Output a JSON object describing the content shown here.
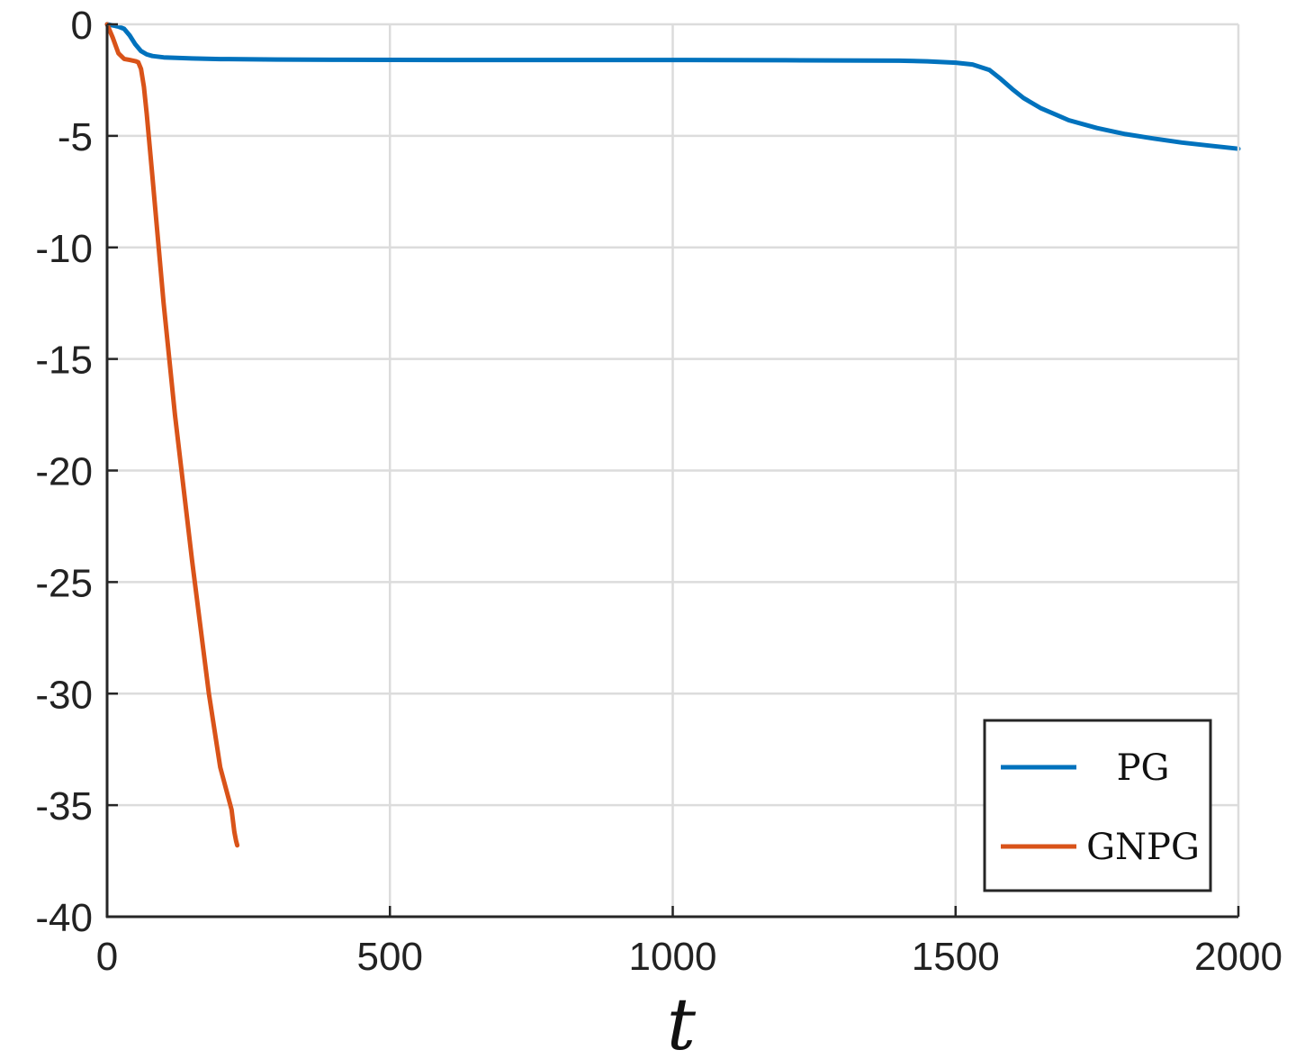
{
  "chart_data": {
    "type": "line",
    "title": "",
    "xlabel": "t",
    "ylabel": "",
    "xlim": [
      0,
      2000
    ],
    "ylim": [
      -40,
      0
    ],
    "xticks": [
      0,
      500,
      1000,
      1500,
      2000
    ],
    "yticks": [
      0,
      -5,
      -10,
      -15,
      -20,
      -25,
      -30,
      -35,
      -40
    ],
    "grid": true,
    "legend_position": "bottom-right",
    "series": [
      {
        "name": "PG",
        "color": "#0072BD",
        "x": [
          0,
          10,
          20,
          30,
          40,
          50,
          60,
          70,
          80,
          100,
          150,
          200,
          300,
          400,
          600,
          800,
          1000,
          1200,
          1400,
          1450,
          1500,
          1530,
          1560,
          1580,
          1600,
          1620,
          1650,
          1700,
          1750,
          1800,
          1850,
          1900,
          1950,
          2000
        ],
        "y": [
          0,
          -0.05,
          -0.1,
          -0.2,
          -0.5,
          -0.9,
          -1.2,
          -1.35,
          -1.42,
          -1.48,
          -1.53,
          -1.56,
          -1.58,
          -1.59,
          -1.6,
          -1.6,
          -1.6,
          -1.61,
          -1.63,
          -1.66,
          -1.72,
          -1.8,
          -2.05,
          -2.45,
          -2.9,
          -3.3,
          -3.75,
          -4.3,
          -4.65,
          -4.92,
          -5.12,
          -5.3,
          -5.44,
          -5.58
        ]
      },
      {
        "name": "GNPG",
        "color": "#D95319",
        "x": [
          0,
          10,
          20,
          30,
          40,
          50,
          55,
          60,
          65,
          70,
          80,
          100,
          120,
          150,
          180,
          200,
          220,
          225,
          228,
          230
        ],
        "y": [
          0,
          -0.6,
          -1.3,
          -1.55,
          -1.6,
          -1.65,
          -1.7,
          -2.0,
          -2.8,
          -4.0,
          -6.8,
          -12.5,
          -17.5,
          -24.0,
          -30.0,
          -33.3,
          -35.2,
          -36.2,
          -36.6,
          -36.8
        ]
      }
    ]
  }
}
